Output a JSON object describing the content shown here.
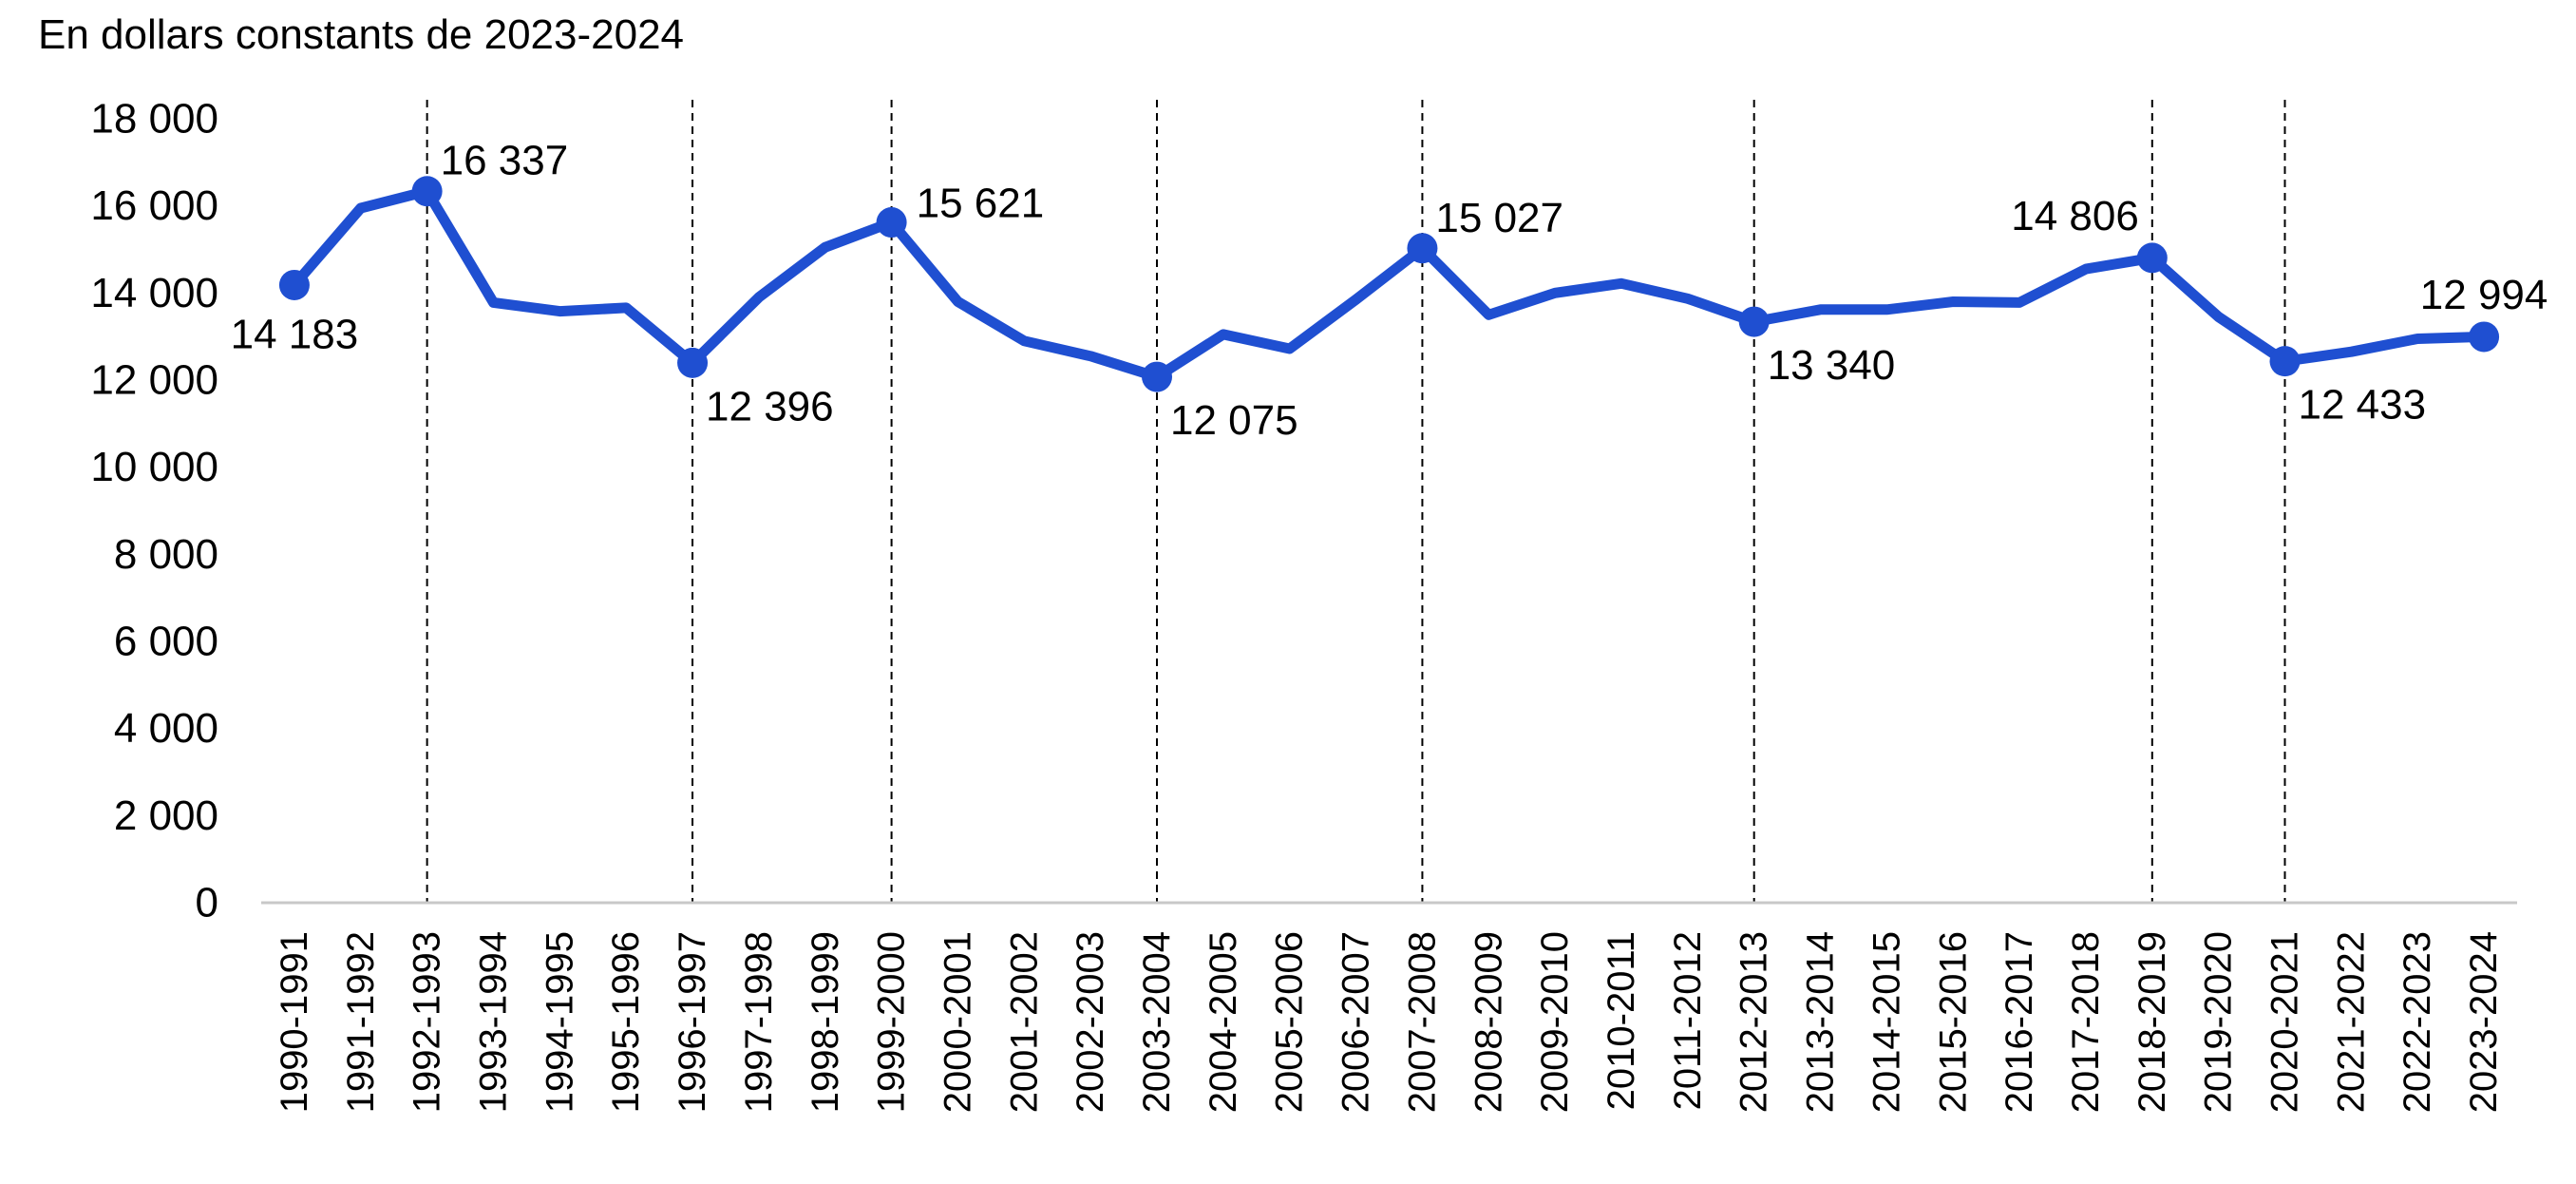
{
  "chart_data": {
    "type": "line",
    "title": "En dollars constants de 2023-2024",
    "ylim": [
      0,
      18000
    ],
    "yticks": [
      0,
      2000,
      4000,
      6000,
      8000,
      10000,
      12000,
      14000,
      16000,
      18000
    ],
    "ytick_labels": [
      "0",
      "2 000",
      "4 000",
      "6 000",
      "8 000",
      "10 000",
      "12 000",
      "14 000",
      "16 000",
      "18 000"
    ],
    "grid": false,
    "legend": "none",
    "categories": [
      "1990-1991",
      "1991-1992",
      "1992-1993",
      "1993-1994",
      "1994-1995",
      "1995-1996",
      "1996-1997",
      "1997-1998",
      "1998-1999",
      "1999-2000",
      "2000-2001",
      "2001-2002",
      "2002-2003",
      "2003-2004",
      "2004-2005",
      "2005-2006",
      "2006-2007",
      "2007-2008",
      "2008-2009",
      "2009-2010",
      "2010-2011",
      "2011-2012",
      "2012-2013",
      "2013-2014",
      "2014-2015",
      "2015-2016",
      "2016-2017",
      "2017-2018",
      "2018-2019",
      "2019-2020",
      "2020-2021",
      "2021-2022",
      "2022-2023",
      "2023-2024"
    ],
    "series": [
      {
        "values": [
          14183,
          15950,
          16337,
          13780,
          13580,
          13660,
          12396,
          13900,
          15050,
          15621,
          13800,
          12900,
          12550,
          12075,
          13050,
          12720,
          13850,
          15027,
          13500,
          14000,
          14220,
          13870,
          13340,
          13620,
          13620,
          13800,
          13780,
          14550,
          14806,
          13450,
          12433,
          12650,
          12950,
          12994
        ],
        "color": "#1F4FD1"
      }
    ],
    "highlighted_points": [
      {
        "category": "1990-1991",
        "value": 14183,
        "label": "14 183",
        "label_position": "below",
        "vline": false
      },
      {
        "category": "1992-1993",
        "value": 16337,
        "label": "16 337",
        "label_position": "above-right",
        "vline": true
      },
      {
        "category": "1996-1997",
        "value": 12396,
        "label": "12 396",
        "label_position": "below-right",
        "vline": true
      },
      {
        "category": "1999-2000",
        "value": 15621,
        "label": "15 621",
        "label_position": "right",
        "vline": true
      },
      {
        "category": "2003-2004",
        "value": 12075,
        "label": "12 075",
        "label_position": "below-right",
        "vline": true
      },
      {
        "category": "2007-2008",
        "value": 15027,
        "label": "15 027",
        "label_position": "above-right",
        "vline": true
      },
      {
        "category": "2012-2013",
        "value": 13340,
        "label": "13 340",
        "label_position": "below-right",
        "vline": true
      },
      {
        "category": "2018-2019",
        "value": 14806,
        "label": "14 806",
        "label_position": "above-left",
        "vline": true
      },
      {
        "category": "2020-2021",
        "value": 12433,
        "label": "12 433",
        "label_position": "below-right",
        "vline": true
      },
      {
        "category": "2023-2024",
        "value": 12994,
        "label": "12 994",
        "label_position": "above",
        "vline": false
      }
    ]
  }
}
